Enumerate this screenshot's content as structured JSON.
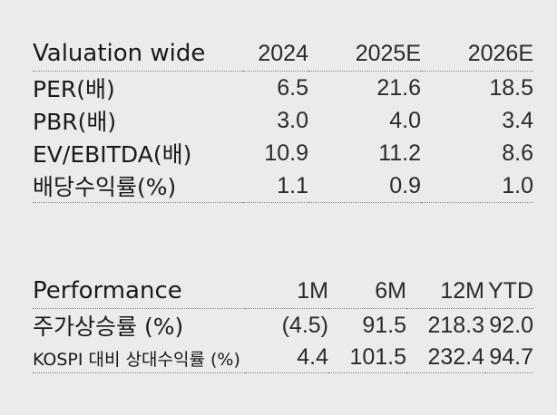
{
  "valuation": {
    "title": "Valuation wide",
    "years": [
      "2024",
      "2025E",
      "2026E"
    ],
    "rows": [
      {
        "label": "PER(배)",
        "values": [
          "6.5",
          "21.6",
          "18.5"
        ]
      },
      {
        "label": "PBR(배)",
        "values": [
          "3.0",
          "4.0",
          "3.4"
        ]
      },
      {
        "label": "EV/EBITDA(배)",
        "values": [
          "10.9",
          "11.2",
          "8.6"
        ]
      },
      {
        "label": "배당수익률(%)",
        "values": [
          "1.1",
          "0.9",
          "1.0"
        ]
      }
    ]
  },
  "performance": {
    "title": "Performance",
    "periods": [
      "1M",
      "6M",
      "12M",
      "YTD"
    ],
    "rows": [
      {
        "label": "주가상승률 (%)",
        "values": [
          "(4.5)",
          "91.5",
          "218.3",
          "92.0"
        ]
      },
      {
        "label": "KOSPI 대비 상대수익률 (%)",
        "values": [
          "4.4",
          "101.5",
          "232.4",
          "94.7"
        ]
      }
    ]
  }
}
